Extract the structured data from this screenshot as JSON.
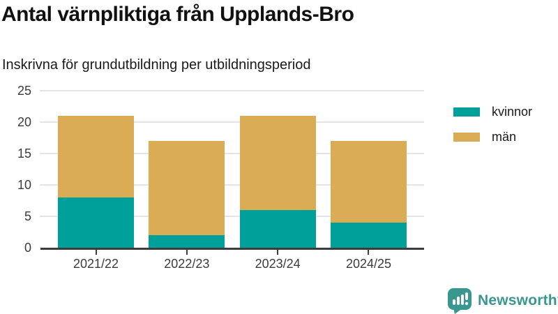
{
  "chart_data": {
    "type": "bar",
    "stacked": true,
    "title": "Antal värnpliktiga från Upplands-Bro",
    "subtitle": "Inskrivna för grundutbildning per utbildningsperiod",
    "categories": [
      "2021/22",
      "2022/23",
      "2023/24",
      "2024/25"
    ],
    "series": [
      {
        "name": "kvinnor",
        "color": "#00A09A",
        "values": [
          8,
          2,
          6,
          4
        ]
      },
      {
        "name": "män",
        "color": "#D9AC55",
        "values": [
          13,
          15,
          15,
          13
        ]
      }
    ],
    "totals": [
      21,
      17,
      21,
      17
    ],
    "xlabel": "",
    "ylabel": "",
    "ylim": [
      0,
      25
    ],
    "yticks": [
      0,
      5,
      10,
      15,
      20,
      25
    ],
    "grid": true,
    "legend_position": "right"
  },
  "branding": {
    "wordmark": "Newsworthy",
    "color": "#38978F",
    "icon": "bar-chart-speech-bubble-icon"
  }
}
